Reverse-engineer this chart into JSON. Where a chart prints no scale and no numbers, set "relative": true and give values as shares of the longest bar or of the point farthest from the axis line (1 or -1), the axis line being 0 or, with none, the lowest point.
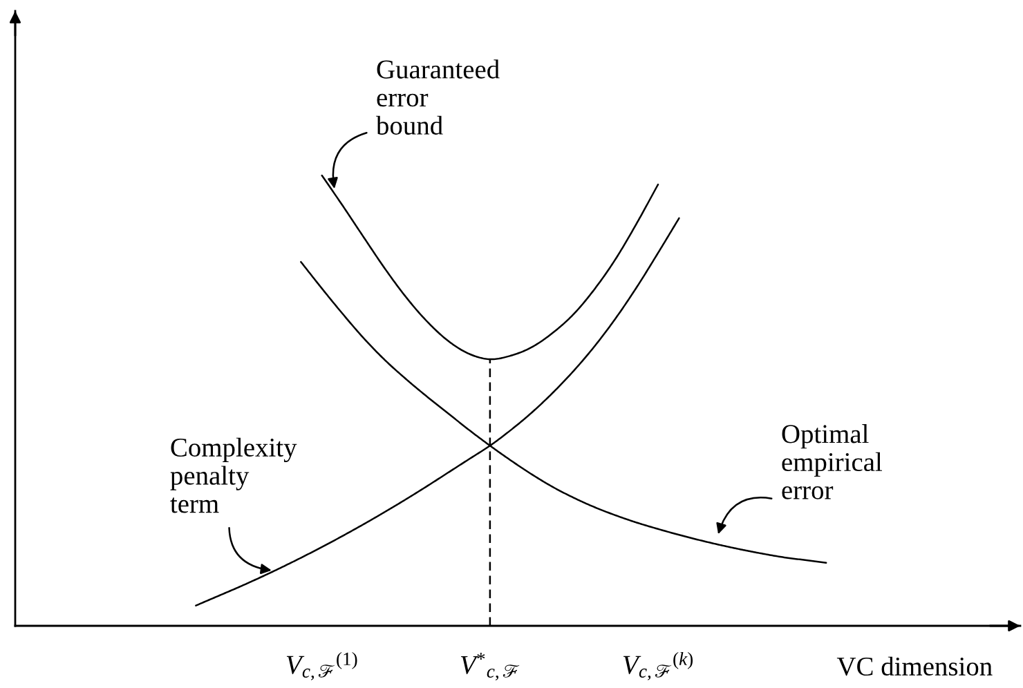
{
  "chart_data": {
    "type": "line",
    "relative": true,
    "xlabel": "VC dimension",
    "categories": [
      null,
      null,
      null,
      null,
      null,
      null,
      null,
      null,
      "V$_{c,ℱ}$$^{(1)}$",
      null,
      null,
      null,
      null,
      null,
      null,
      null,
      "V$^{*}$$_{c,ℱ}$",
      null,
      null,
      null,
      null,
      null,
      null,
      null,
      "V$_{c,ℱ}$$^{(k)}$",
      null,
      null,
      null,
      null,
      null,
      null,
      null,
      null
    ],
    "tick_labels": "x",
    "line_style": "solid",
    "series": [
      {
        "color": "#000000",
        "values": [
          null,
          null,
          null,
          null,
          null,
          null,
          null,
          null,
          1.0,
          0.932,
          0.862,
          0.793,
          0.73,
          0.676,
          0.633,
          0.604,
          0.592,
          0.6,
          0.619,
          0.651,
          0.693,
          0.749,
          0.816,
          0.895,
          0.98,
          null,
          null,
          null,
          null,
          null,
          null,
          null,
          null
        ]
      },
      {
        "color": "#000000",
        "values": [
          null,
          null,
          0.045,
          0.065,
          0.085,
          0.106,
          0.128,
          0.151,
          0.175,
          0.2,
          0.226,
          0.253,
          0.281,
          0.31,
          0.34,
          0.37,
          0.4,
          0.435,
          0.474,
          0.518,
          0.567,
          0.622,
          0.684,
          0.753,
          0.828,
          0.905,
          null,
          null,
          null,
          null,
          null,
          null,
          null
        ]
      },
      {
        "color": "#000000",
        "values": [
          null,
          null,
          null,
          null,
          null,
          null,
          null,
          0.808,
          0.749,
          0.692,
          0.638,
          0.59,
          0.548,
          0.509,
          0.472,
          0.435,
          0.4,
          0.367,
          0.336,
          0.308,
          0.284,
          0.263,
          0.245,
          0.229,
          0.215,
          0.202,
          0.19,
          0.179,
          0.169,
          0.16,
          0.152,
          0.146,
          0.14
        ]
      }
    ],
    "ref_lines": [
      {
        "axis": "x",
        "value": "V$^{*}$$_{c,ℱ}$",
        "line_style": "dashed",
        "color": "#000000"
      }
    ],
    "annotations": [
      "Guaranteed\nerror\nbound",
      "Complexity\npenalty\nterm",
      "Optimal\nempirical\nerror"
    ]
  }
}
